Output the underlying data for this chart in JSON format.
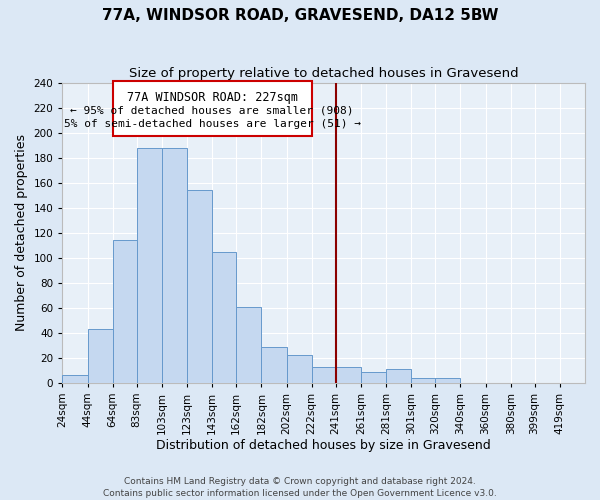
{
  "title": "77A, WINDSOR ROAD, GRAVESEND, DA12 5BW",
  "subtitle": "Size of property relative to detached houses in Gravesend",
  "xlabel": "Distribution of detached houses by size in Gravesend",
  "ylabel": "Number of detached properties",
  "bin_labels": [
    "24sqm",
    "44sqm",
    "64sqm",
    "83sqm",
    "103sqm",
    "123sqm",
    "143sqm",
    "162sqm",
    "182sqm",
    "202sqm",
    "222sqm",
    "241sqm",
    "261sqm",
    "281sqm",
    "301sqm",
    "320sqm",
    "340sqm",
    "360sqm",
    "380sqm",
    "399sqm",
    "419sqm"
  ],
  "bar_heights": [
    6,
    43,
    114,
    188,
    188,
    154,
    105,
    61,
    29,
    22,
    13,
    13,
    9,
    11,
    4,
    4,
    0,
    0,
    0,
    0,
    0
  ],
  "bar_color": "#c5d8f0",
  "bar_edge_color": "#6699cc",
  "reference_line_x_label": "222sqm",
  "reference_line_color": "#8b0000",
  "annotation_title": "77A WINDSOR ROAD: 227sqm",
  "annotation_line1": "← 95% of detached houses are smaller (908)",
  "annotation_line2": "5% of semi-detached houses are larger (51) →",
  "annotation_box_edge_color": "#cc0000",
  "ylim": [
    0,
    240
  ],
  "yticks": [
    0,
    20,
    40,
    60,
    80,
    100,
    120,
    140,
    160,
    180,
    200,
    220,
    240
  ],
  "footer_line1": "Contains HM Land Registry data © Crown copyright and database right 2024.",
  "footer_line2": "Contains public sector information licensed under the Open Government Licence v3.0.",
  "background_color": "#dce8f5",
  "plot_bg_color": "#e8f0f8",
  "grid_color": "#ffffff",
  "title_fontsize": 11,
  "subtitle_fontsize": 9.5,
  "axis_label_fontsize": 9,
  "tick_fontsize": 7.5,
  "footer_fontsize": 6.5
}
